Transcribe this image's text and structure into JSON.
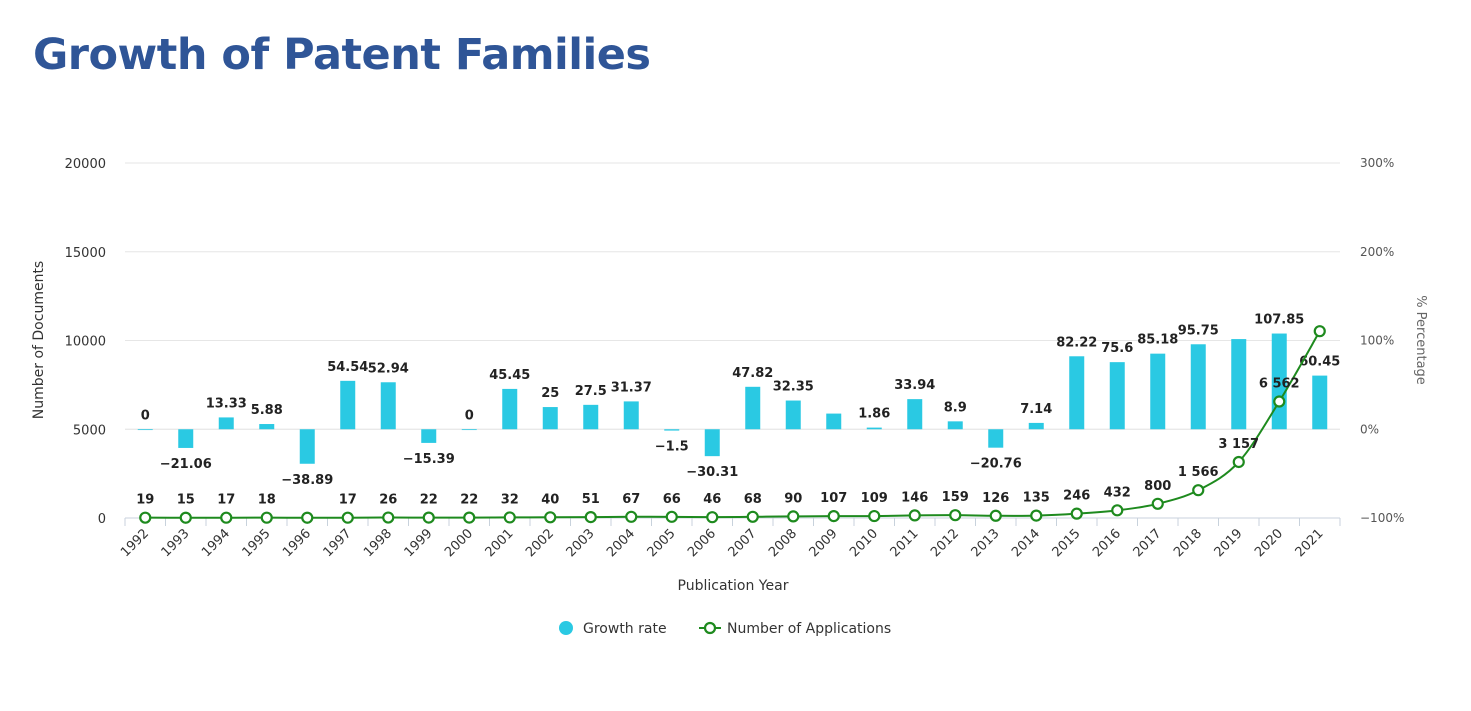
{
  "page": {
    "title": "Growth of Patent Families"
  },
  "colors": {
    "bar": "#2ac9e3",
    "line": "#1e8a1e",
    "grid": "#e6e6e6",
    "title": "#2f5597"
  },
  "chart_data": {
    "type": "bar+line",
    "title": "Growth of Patent Families",
    "categories": [
      "1992",
      "1993",
      "1994",
      "1995",
      "1996",
      "1997",
      "1998",
      "1999",
      "2000",
      "2001",
      "2002",
      "2003",
      "2004",
      "2005",
      "2006",
      "2007",
      "2008",
      "2009",
      "2010",
      "2011",
      "2012",
      "2013",
      "2014",
      "2015",
      "2016",
      "2017",
      "2018",
      "2019",
      "2020",
      "2021"
    ],
    "series": [
      {
        "name": "Growth rate",
        "type": "bar",
        "axis": "right",
        "values": [
          0,
          -21.06,
          13.33,
          5.88,
          -38.89,
          54.54,
          52.94,
          -15.39,
          0,
          45.45,
          25,
          27.5,
          31.37,
          -1.5,
          -30.31,
          47.82,
          32.35,
          17.65,
          1.86,
          33.94,
          8.9,
          -20.76,
          7.14,
          82.22,
          75.6,
          85.18,
          95.75,
          101.6,
          107.85,
          60.45
        ],
        "labels": [
          "0",
          "−21.06",
          "13.33",
          "5.88",
          "−38.89",
          "54.54",
          "52.94",
          "−15.39",
          "0",
          "45.45",
          "25",
          "27.5",
          "31.37",
          "−1.5",
          "−30.31",
          "47.82",
          "32.35",
          "",
          "1.86",
          "33.94",
          "8.9",
          "−20.76",
          "7.14",
          "82.22",
          "75.6",
          "85.18",
          "95.75",
          "",
          "107.85",
          "60.45"
        ]
      },
      {
        "name": "Number of Applications",
        "type": "line",
        "axis": "left",
        "values": [
          19,
          15,
          17,
          18,
          16,
          17,
          26,
          22,
          22,
          32,
          40,
          51,
          67,
          66,
          46,
          68,
          90,
          107,
          109,
          146,
          159,
          126,
          135,
          246,
          432,
          800,
          1566,
          3157,
          6562,
          10525
        ],
        "labels": [
          "19",
          "15",
          "17",
          "18",
          "",
          "17",
          "26",
          "22",
          "22",
          "32",
          "40",
          "51",
          "67",
          "66",
          "46",
          "68",
          "90",
          "107",
          "109",
          "146",
          "159",
          "126",
          "135",
          "246",
          "432",
          "800",
          "1 566",
          "3 157",
          "6 562",
          ""
        ]
      }
    ],
    "xlabel": "Publication Year",
    "ylabel": "Number of Documents",
    "ylabel_right": "% Percentage",
    "ylim": [
      0,
      20000
    ],
    "yticks": [
      "0",
      "5000",
      "10000",
      "15000",
      "20000"
    ],
    "ylim_right": [
      -100,
      300
    ],
    "yticks_right": [
      "−100%",
      "0%",
      "100%",
      "200%",
      "300%"
    ],
    "grid": true,
    "legend": "bottom-center"
  }
}
